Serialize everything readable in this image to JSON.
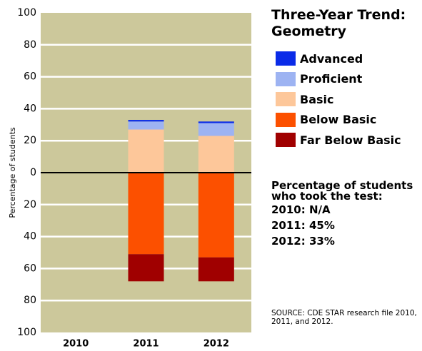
{
  "chart_data": {
    "type": "diverging-stacked-bar",
    "title": "Three-Year Trend: Geometry",
    "y_label": "Percentage of students",
    "categories": [
      "2010",
      "2011",
      "2012"
    ],
    "series": [
      {
        "name": "Advanced",
        "color": "#0a2be8",
        "side": "above",
        "values": [
          null,
          1,
          1
        ]
      },
      {
        "name": "Proficient",
        "color": "#9db3f2",
        "side": "above",
        "values": [
          null,
          5,
          8
        ]
      },
      {
        "name": "Basic",
        "color": "#fdc79a",
        "side": "above",
        "values": [
          null,
          27,
          23
        ]
      },
      {
        "name": "Below Basic",
        "color": "#fc5000",
        "side": "below",
        "values": [
          null,
          51,
          53
        ]
      },
      {
        "name": "Far Below Basic",
        "color": "#a00000",
        "side": "below",
        "values": [
          null,
          17,
          15
        ]
      }
    ],
    "ylim": [
      -100,
      100
    ],
    "yticks": [
      {
        "value": -100,
        "label": "100"
      },
      {
        "value": -80,
        "label": "80"
      },
      {
        "value": -60,
        "label": "60"
      },
      {
        "value": -40,
        "label": "40"
      },
      {
        "value": -20,
        "label": "20"
      },
      0,
      20,
      40,
      60,
      80,
      100
    ],
    "grid": true,
    "participation_title": "Percentage of students who took the test:",
    "participation": [
      "2010: N/A",
      "2011: 45%",
      "2012: 33%"
    ],
    "source": "SOURCE: CDE STAR research file 2010, 2011, and 2012."
  }
}
